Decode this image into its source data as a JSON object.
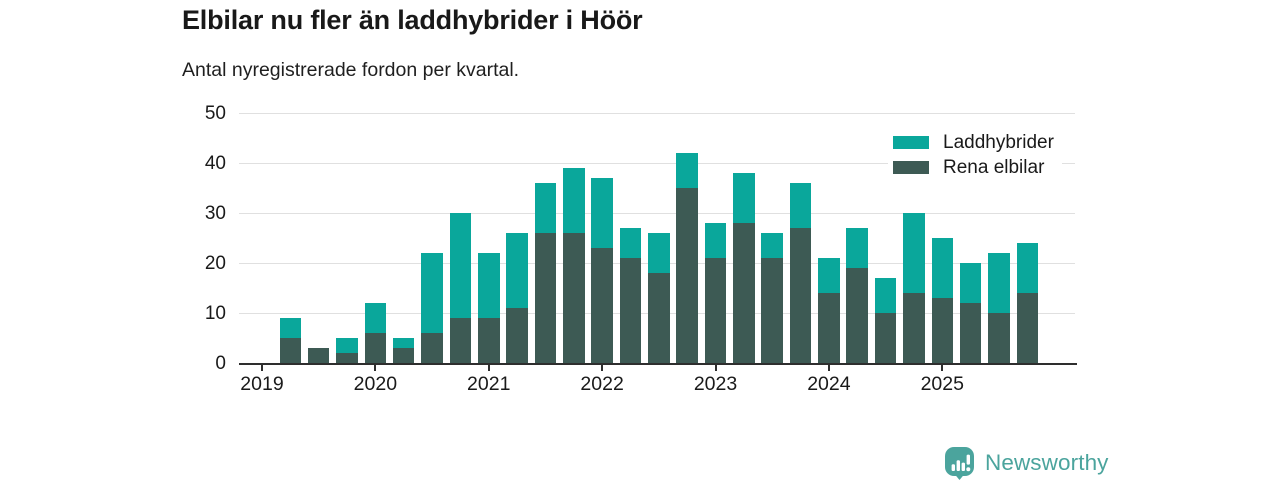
{
  "header": {
    "title": "Elbilar nu fler än laddhybrider i Höör",
    "subtitle": "Antal nyregistrerade fordon per kvartal."
  },
  "legend": {
    "items": [
      {
        "label": "Laddhybrider",
        "color": "#0AA79B"
      },
      {
        "label": "Rena elbilar",
        "color": "#3D5A54"
      }
    ]
  },
  "chart_data": {
    "type": "bar",
    "stacked": true,
    "title": "Elbilar nu fler än laddhybrider i Höör",
    "subtitle": "Antal nyregistrerade fordon per kvartal.",
    "xlabel": "",
    "ylabel": "",
    "ylim": [
      0,
      50
    ],
    "yticks": [
      0,
      10,
      20,
      30,
      40,
      50
    ],
    "grid": "horizontal",
    "legend_position": "top-right",
    "categories": [
      "2019 Q1",
      "2019 Q2",
      "2019 Q3",
      "2019 Q4",
      "2020 Q1",
      "2020 Q2",
      "2020 Q3",
      "2020 Q4",
      "2021 Q1",
      "2021 Q2",
      "2021 Q3",
      "2021 Q4",
      "2022 Q1",
      "2022 Q2",
      "2022 Q3",
      "2022 Q4",
      "2023 Q1",
      "2023 Q2",
      "2023 Q3",
      "2023 Q4",
      "2024 Q1",
      "2024 Q2",
      "2024 Q3",
      "2024 Q4",
      "2025 Q1",
      "2025 Q2",
      "2025 Q3",
      "2025 Q4"
    ],
    "x_year_ticks": [
      {
        "label": "2019",
        "quarter_index": 0
      },
      {
        "label": "2020",
        "quarter_index": 4
      },
      {
        "label": "2021",
        "quarter_index": 8
      },
      {
        "label": "2022",
        "quarter_index": 12
      },
      {
        "label": "2023",
        "quarter_index": 16
      },
      {
        "label": "2024",
        "quarter_index": 20
      },
      {
        "label": "2025",
        "quarter_index": 24
      }
    ],
    "series": [
      {
        "name": "Laddhybrider",
        "color": "#0AA79B",
        "stack": "top",
        "values": [
          0,
          4,
          0,
          3,
          6,
          2,
          16,
          21,
          13,
          15,
          10,
          13,
          14,
          6,
          8,
          7,
          7,
          10,
          5,
          9,
          7,
          8,
          7,
          16,
          12,
          8,
          12,
          10
        ]
      },
      {
        "name": "Rena elbilar",
        "color": "#3D5A54",
        "stack": "bottom",
        "values": [
          0,
          5,
          3,
          2,
          6,
          3,
          6,
          9,
          9,
          11,
          26,
          26,
          23,
          21,
          18,
          35,
          21,
          28,
          21,
          27,
          14,
          19,
          10,
          14,
          13,
          12,
          10,
          14
        ]
      }
    ],
    "totals": [
      0,
      9,
      3,
      5,
      12,
      5,
      22,
      30,
      22,
      26,
      36,
      39,
      37,
      27,
      26,
      42,
      28,
      38,
      26,
      36,
      21,
      27,
      17,
      30,
      25,
      20,
      22,
      24
    ]
  },
  "footer": {
    "brand": "Newsworthy",
    "brand_color": "#4BA49D"
  }
}
